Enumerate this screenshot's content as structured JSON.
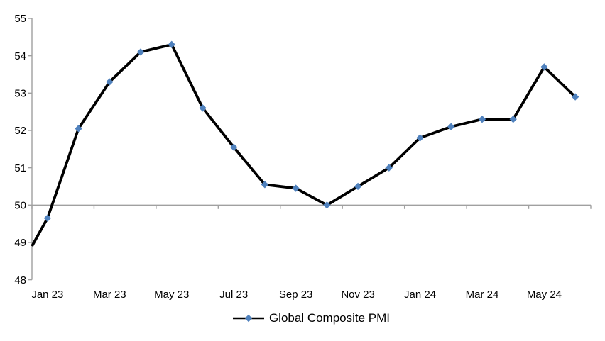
{
  "chart_data": {
    "type": "line",
    "title": "",
    "categories": [
      "Jan 23",
      "Feb 23",
      "Mar 23",
      "Apr 23",
      "May 23",
      "Jun 23",
      "Jul 23",
      "Aug 23",
      "Sep 23",
      "Oct 23",
      "Nov 23",
      "Dec 23",
      "Jan 24",
      "Feb 24",
      "Mar 24",
      "Apr 24",
      "May 24",
      "Jun 24"
    ],
    "series": [
      {
        "name": "Global Composite PMI",
        "values": [
          49.65,
          52.05,
          53.3,
          54.1,
          54.3,
          52.6,
          51.55,
          50.55,
          50.45,
          50.0,
          50.5,
          51.0,
          51.8,
          52.1,
          52.3,
          52.3,
          53.7,
          52.9
        ],
        "lead_in_value_at_left_axis": 48.9,
        "line_color": "#000000",
        "marker": "diamond",
        "marker_color": "#4f81bd"
      }
    ],
    "x_tick_labels": [
      "Jan 23",
      "Mar 23",
      "May 23",
      "Jul 23",
      "Sep 23",
      "Nov 23",
      "Jan 24",
      "Mar 24",
      "May 24"
    ],
    "x_label_interval": 2,
    "y_ticks": [
      55,
      54,
      53,
      52,
      51,
      50,
      49,
      48
    ],
    "ylim": [
      48,
      55
    ],
    "x_axis_cross_value": 50,
    "grid": false,
    "axis_color": "#a0a0a0",
    "text_color": "#000000",
    "legend": {
      "label": "Global Composite PMI",
      "position": "bottom-center"
    }
  }
}
